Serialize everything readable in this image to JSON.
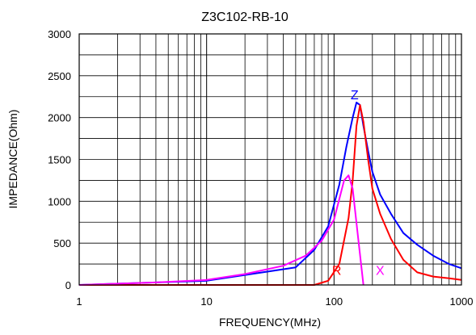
{
  "chart_data": {
    "type": "line",
    "title": "Z3C102-RB-10",
    "xlabel": "FREQUENCY(MHz)",
    "ylabel": "IMPEDANCE(Ohm)",
    "xscale": "log",
    "xlim": [
      1,
      1000
    ],
    "ylim": [
      0,
      3000
    ],
    "xticks": [
      "1",
      "10",
      "100",
      "1000"
    ],
    "yticks": [
      "0",
      "500",
      "1000",
      "1500",
      "2000",
      "2500",
      "3000"
    ],
    "grid": true,
    "series": [
      {
        "name": "Z",
        "color": "#0000ff",
        "x": [
          1,
          10,
          50,
          70,
          90,
          110,
          125,
          140,
          150,
          160,
          170,
          185,
          200,
          230,
          280,
          350,
          450,
          600,
          800,
          1000
        ],
        "y": [
          0,
          50,
          210,
          420,
          700,
          1200,
          1650,
          2000,
          2180,
          2150,
          1900,
          1600,
          1350,
          1080,
          850,
          620,
          480,
          350,
          250,
          200
        ]
      },
      {
        "name": "R",
        "color": "#ff0000",
        "x": [
          1,
          70,
          90,
          110,
          130,
          140,
          150,
          160,
          170,
          185,
          200,
          230,
          280,
          350,
          450,
          600,
          800,
          1000
        ],
        "y": [
          0,
          0,
          50,
          250,
          800,
          1250,
          1900,
          2150,
          1950,
          1500,
          1150,
          850,
          550,
          300,
          150,
          100,
          80,
          60
        ]
      },
      {
        "name": "X",
        "color": "#ff00ff",
        "x": [
          1,
          4,
          10,
          20,
          40,
          60,
          80,
          100,
          120,
          130,
          140,
          155,
          170
        ],
        "y": [
          0,
          30,
          60,
          130,
          230,
          350,
          530,
          780,
          1250,
          1310,
          1150,
          550,
          0
        ]
      }
    ],
    "labels": [
      {
        "text": "Z",
        "x": 145,
        "y": 2200,
        "color": "#0000ff"
      },
      {
        "text": "R",
        "x": 105,
        "y": 100,
        "color": "#ff0000"
      },
      {
        "text": "X",
        "x": 230,
        "y": 100,
        "color": "#ff00ff"
      }
    ]
  }
}
